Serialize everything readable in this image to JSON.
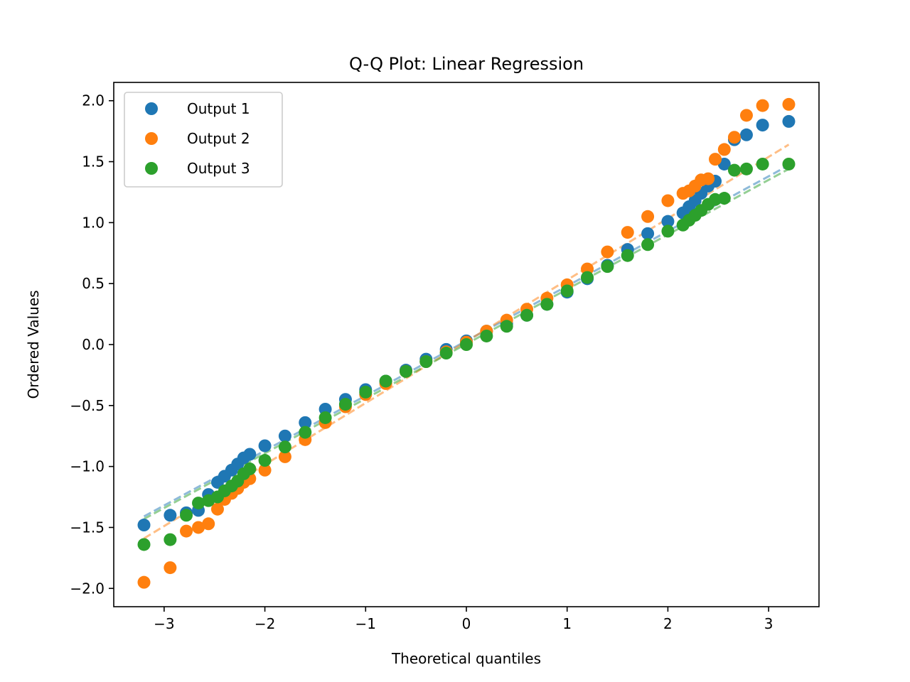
{
  "chart_data": {
    "type": "scatter",
    "title": "Q-Q Plot: Linear Regression",
    "xlabel": "Theoretical quantiles",
    "ylabel": "Ordered Values",
    "xlim": [
      -3.5,
      3.5
    ],
    "ylim": [
      -2.15,
      2.15
    ],
    "x_ticks": [
      -3,
      -2,
      -1,
      0,
      1,
      2,
      3
    ],
    "x_tick_labels": [
      "−3",
      "−2",
      "−1",
      "0",
      "1",
      "2",
      "3"
    ],
    "y_ticks": [
      -2.0,
      -1.5,
      -1.0,
      -0.5,
      0.0,
      0.5,
      1.0,
      1.5,
      2.0
    ],
    "y_tick_labels": [
      "−2.0",
      "−1.5",
      "−1.0",
      "−0.5",
      "0.0",
      "0.5",
      "1.0",
      "1.5",
      "2.0"
    ],
    "grid": false,
    "legend_position": "top-left",
    "series": [
      {
        "name": "Output 1",
        "color": "#1f77b4",
        "fit_line": {
          "x": [
            -3.2,
            3.2
          ],
          "y": [
            -1.41,
            1.47
          ]
        },
        "points": [
          [
            -3.2,
            -1.48
          ],
          [
            -2.94,
            -1.4
          ],
          [
            -2.78,
            -1.38
          ],
          [
            -2.66,
            -1.36
          ],
          [
            -2.56,
            -1.23
          ],
          [
            -2.47,
            -1.13
          ],
          [
            -2.4,
            -1.08
          ],
          [
            -2.33,
            -1.03
          ],
          [
            -2.27,
            -0.98
          ],
          [
            -2.21,
            -0.93
          ],
          [
            -2.15,
            -0.9
          ],
          [
            -2.0,
            -0.83
          ],
          [
            -1.8,
            -0.75
          ],
          [
            -1.6,
            -0.64
          ],
          [
            -1.4,
            -0.53
          ],
          [
            -1.2,
            -0.45
          ],
          [
            -1.0,
            -0.37
          ],
          [
            -0.8,
            -0.3
          ],
          [
            -0.6,
            -0.21
          ],
          [
            -0.4,
            -0.12
          ],
          [
            -0.2,
            -0.04
          ],
          [
            0.0,
            0.03
          ],
          [
            0.2,
            0.11
          ],
          [
            0.4,
            0.17
          ],
          [
            0.6,
            0.24
          ],
          [
            0.8,
            0.33
          ],
          [
            1.0,
            0.43
          ],
          [
            1.2,
            0.54
          ],
          [
            1.4,
            0.65
          ],
          [
            1.6,
            0.78
          ],
          [
            1.8,
            0.91
          ],
          [
            2.0,
            1.01
          ],
          [
            2.15,
            1.08
          ],
          [
            2.21,
            1.13
          ],
          [
            2.27,
            1.18
          ],
          [
            2.33,
            1.24
          ],
          [
            2.4,
            1.3
          ],
          [
            2.47,
            1.34
          ],
          [
            2.56,
            1.48
          ],
          [
            2.66,
            1.68
          ],
          [
            2.78,
            1.72
          ],
          [
            2.94,
            1.8
          ],
          [
            3.2,
            1.83
          ]
        ]
      },
      {
        "name": "Output 2",
        "color": "#ff7f0e",
        "fit_line": {
          "x": [
            -3.2,
            3.2
          ],
          "y": [
            -1.59,
            1.64
          ]
        },
        "points": [
          [
            -3.2,
            -1.95
          ],
          [
            -2.94,
            -1.83
          ],
          [
            -2.78,
            -1.53
          ],
          [
            -2.66,
            -1.5
          ],
          [
            -2.56,
            -1.47
          ],
          [
            -2.47,
            -1.35
          ],
          [
            -2.4,
            -1.27
          ],
          [
            -2.33,
            -1.22
          ],
          [
            -2.27,
            -1.18
          ],
          [
            -2.21,
            -1.13
          ],
          [
            -2.15,
            -1.1
          ],
          [
            -2.0,
            -1.03
          ],
          [
            -1.8,
            -0.92
          ],
          [
            -1.6,
            -0.78
          ],
          [
            -1.4,
            -0.64
          ],
          [
            -1.2,
            -0.51
          ],
          [
            -1.0,
            -0.41
          ],
          [
            -0.8,
            -0.32
          ],
          [
            -0.6,
            -0.22
          ],
          [
            -0.4,
            -0.14
          ],
          [
            -0.2,
            -0.06
          ],
          [
            0.0,
            0.02
          ],
          [
            0.2,
            0.11
          ],
          [
            0.4,
            0.2
          ],
          [
            0.6,
            0.29
          ],
          [
            0.8,
            0.38
          ],
          [
            1.0,
            0.49
          ],
          [
            1.2,
            0.62
          ],
          [
            1.4,
            0.76
          ],
          [
            1.6,
            0.92
          ],
          [
            1.8,
            1.05
          ],
          [
            2.0,
            1.18
          ],
          [
            2.15,
            1.24
          ],
          [
            2.21,
            1.26
          ],
          [
            2.27,
            1.3
          ],
          [
            2.33,
            1.35
          ],
          [
            2.4,
            1.36
          ],
          [
            2.47,
            1.52
          ],
          [
            2.56,
            1.6
          ],
          [
            2.66,
            1.7
          ],
          [
            2.78,
            1.88
          ],
          [
            2.94,
            1.96
          ],
          [
            3.2,
            1.97
          ]
        ]
      },
      {
        "name": "Output 3",
        "color": "#2ca02c",
        "fit_line": {
          "x": [
            -3.2,
            3.2
          ],
          "y": [
            -1.43,
            1.44
          ]
        },
        "points": [
          [
            -3.2,
            -1.64
          ],
          [
            -2.94,
            -1.6
          ],
          [
            -2.78,
            -1.4
          ],
          [
            -2.66,
            -1.3
          ],
          [
            -2.56,
            -1.28
          ],
          [
            -2.47,
            -1.25
          ],
          [
            -2.4,
            -1.2
          ],
          [
            -2.33,
            -1.16
          ],
          [
            -2.27,
            -1.12
          ],
          [
            -2.21,
            -1.06
          ],
          [
            -2.15,
            -1.02
          ],
          [
            -2.0,
            -0.95
          ],
          [
            -1.8,
            -0.84
          ],
          [
            -1.6,
            -0.72
          ],
          [
            -1.4,
            -0.6
          ],
          [
            -1.2,
            -0.49
          ],
          [
            -1.0,
            -0.39
          ],
          [
            -0.8,
            -0.3
          ],
          [
            -0.6,
            -0.22
          ],
          [
            -0.4,
            -0.14
          ],
          [
            -0.2,
            -0.07
          ],
          [
            0.0,
            0.0
          ],
          [
            0.2,
            0.07
          ],
          [
            0.4,
            0.15
          ],
          [
            0.6,
            0.24
          ],
          [
            0.8,
            0.33
          ],
          [
            1.0,
            0.44
          ],
          [
            1.2,
            0.55
          ],
          [
            1.4,
            0.64
          ],
          [
            1.6,
            0.73
          ],
          [
            1.8,
            0.82
          ],
          [
            2.0,
            0.93
          ],
          [
            2.15,
            0.98
          ],
          [
            2.21,
            1.02
          ],
          [
            2.27,
            1.06
          ],
          [
            2.33,
            1.1
          ],
          [
            2.4,
            1.15
          ],
          [
            2.47,
            1.19
          ],
          [
            2.56,
            1.2
          ],
          [
            2.66,
            1.43
          ],
          [
            2.78,
            1.44
          ],
          [
            2.94,
            1.48
          ],
          [
            3.2,
            1.48
          ]
        ]
      }
    ]
  }
}
